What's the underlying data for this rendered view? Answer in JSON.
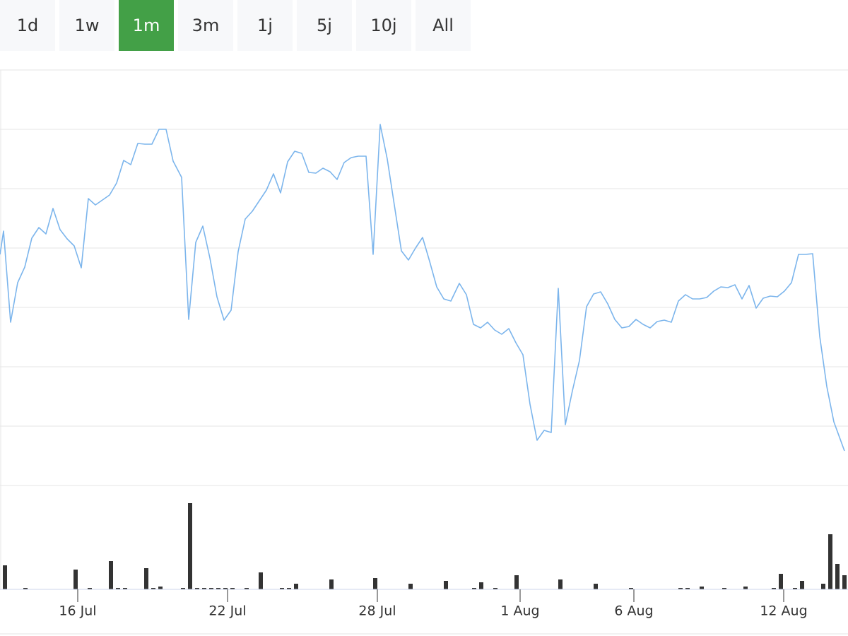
{
  "range_buttons": {
    "labels": [
      "1d",
      "1w",
      "1m",
      "3m",
      "1j",
      "5j",
      "10j",
      "All"
    ],
    "active_index": 2
  },
  "chart_data": {
    "type": "line",
    "xlim": [
      0,
      1200
    ],
    "xticks": [
      {
        "value": 110,
        "label": "16 Jul"
      },
      {
        "value": 322,
        "label": "22 Jul"
      },
      {
        "value": 534,
        "label": "28 Jul"
      },
      {
        "value": 736,
        "label": "1 Aug"
      },
      {
        "value": 897,
        "label": "6 Aug"
      },
      {
        "value": 1109,
        "label": "12 Aug"
      }
    ],
    "ylim": [
      0,
      588
    ],
    "yticks": [
      0,
      84,
      168,
      252,
      336,
      420,
      504,
      588
    ],
    "grid": true,
    "x": [
      0,
      5,
      15,
      25,
      35,
      45,
      55,
      65,
      75,
      85,
      95,
      105,
      115,
      125,
      135,
      145,
      155,
      165,
      175,
      185,
      195,
      205,
      215,
      225,
      235,
      245,
      257,
      267,
      277,
      287,
      297,
      307,
      317,
      327,
      337,
      347,
      357,
      367,
      377,
      387,
      397,
      407,
      417,
      427,
      437,
      447,
      457,
      467,
      477,
      487,
      497,
      507,
      518,
      528,
      538,
      548,
      558,
      568,
      578,
      588,
      598,
      608,
      618,
      628,
      638,
      650,
      660,
      670,
      680,
      690,
      700,
      710,
      720,
      730,
      740,
      750,
      760,
      770,
      780,
      790,
      800,
      810,
      820,
      830,
      840,
      850,
      860,
      870,
      880,
      890,
      900,
      910,
      920,
      930,
      940,
      950,
      960,
      970,
      980,
      990,
      1000,
      1010,
      1020,
      1030,
      1040,
      1050,
      1060,
      1070,
      1080,
      1090,
      1100,
      1110,
      1120,
      1130,
      1140,
      1150,
      1160,
      1170,
      1180,
      1195
    ],
    "series": [
      {
        "color": "#7cb5ec",
        "values": [
          327,
          360,
          231,
          287,
          309,
          350,
          365,
          356,
          392,
          362,
          349,
          339,
          308,
          406,
          397,
          404,
          411,
          428,
          460,
          454,
          484,
          483,
          483,
          504,
          504,
          459,
          436,
          235,
          344,
          367,
          322,
          267,
          234,
          248,
          331,
          377,
          388,
          403,
          418,
          441,
          414,
          458,
          473,
          470,
          443,
          442,
          449,
          444,
          433,
          457,
          464,
          466,
          466,
          327,
          511,
          462,
          397,
          332,
          319,
          336,
          351,
          317,
          281,
          264,
          261,
          286,
          270,
          228,
          223,
          231,
          220,
          214,
          222,
          202,
          185,
          115,
          64,
          78,
          75,
          279,
          86,
          134,
          177,
          253,
          271,
          274,
          257,
          235,
          223,
          225,
          235,
          228,
          223,
          232,
          234,
          231,
          261,
          270,
          264,
          264,
          266,
          275,
          281,
          280,
          284,
          264,
          283,
          251,
          265,
          268,
          267,
          275,
          287,
          327,
          327,
          328,
          211,
          140,
          90,
          49
        ]
      }
    ],
    "volume": {
      "color": "#333333",
      "ylim": [
        0,
        147
      ],
      "x": [
        7,
        36,
        107,
        127,
        157,
        167,
        177,
        207,
        217,
        227,
        259,
        269,
        279,
        289,
        299,
        309,
        319,
        329,
        349,
        369,
        399,
        409,
        419,
        469,
        531,
        581,
        631,
        671,
        681,
        701,
        731,
        793,
        843,
        893,
        963,
        973,
        993,
        1025,
        1055,
        1095,
        1105,
        1125,
        1135,
        1165,
        1175,
        1185,
        1195
      ],
      "values": [
        34,
        2,
        28,
        2,
        40,
        2,
        2,
        30,
        2,
        4,
        2,
        122,
        2,
        2,
        2,
        2,
        2,
        2,
        2,
        24,
        2,
        2,
        8,
        14,
        16,
        8,
        12,
        2,
        10,
        2,
        20,
        14,
        8,
        2,
        2,
        2,
        4,
        2,
        4,
        2,
        22,
        2,
        12,
        8,
        78,
        36,
        20
      ]
    }
  }
}
